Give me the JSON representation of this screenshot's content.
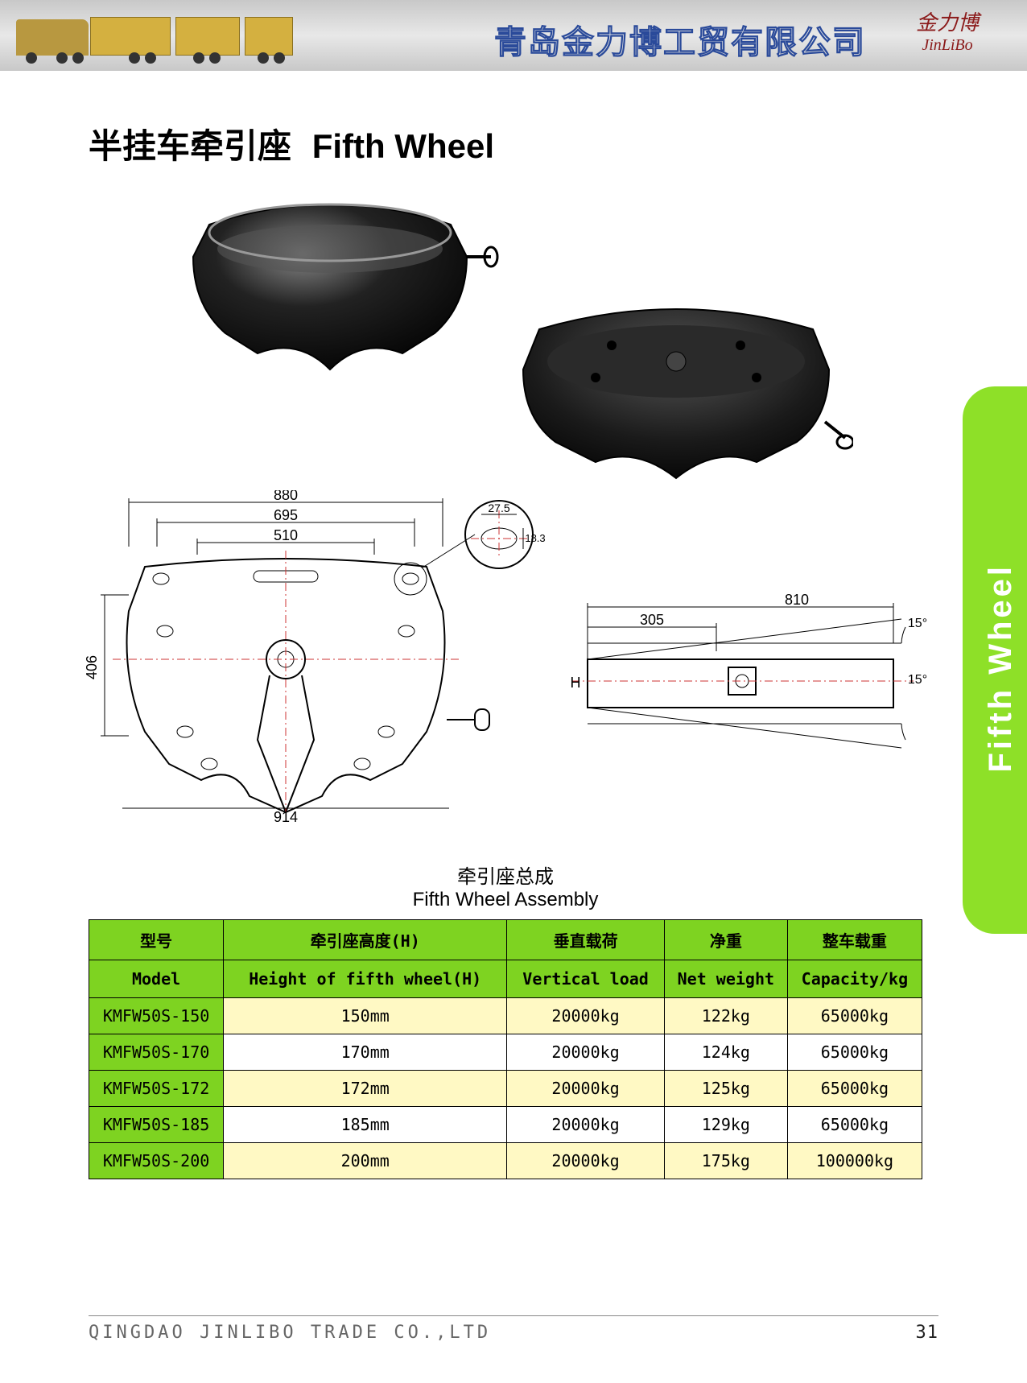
{
  "header": {
    "company_chinese": "青岛金力博工贸有限公司",
    "brand_chinese_script": "金力博",
    "brand_latin": "JinLiBo"
  },
  "page_title": {
    "chinese": "半挂车牵引座",
    "english": "Fifth Wheel"
  },
  "side_tab_text": "Fifth Wheel",
  "drawing_dimensions": {
    "top_880": "880",
    "top_695": "695",
    "top_510": "510",
    "detail_27_5": "27.5",
    "detail_18_3": "18.3",
    "left_406": "406",
    "bottom_914": "914",
    "side_810": "810",
    "side_305": "305",
    "angle_top": "15°",
    "angle_bot": "15°",
    "side_H": "H"
  },
  "table": {
    "title_cn": "牵引座总成",
    "title_en": "Fifth Wheel Assembly",
    "header_cn": [
      "型号",
      "牵引座高度(H)",
      "垂直载荷",
      "净重",
      "整车载重"
    ],
    "header_en": [
      "Model",
      "Height of fifth wheel(H)",
      "Vertical load",
      "Net weight",
      "Capacity/kg"
    ],
    "rows": [
      {
        "model": "KMFW50S-150",
        "height": "150mm",
        "vload": "20000kg",
        "net": "122kg",
        "cap": "65000kg",
        "alt": true
      },
      {
        "model": "KMFW50S-170",
        "height": "170mm",
        "vload": "20000kg",
        "net": "124kg",
        "cap": "65000kg",
        "alt": false
      },
      {
        "model": "KMFW50S-172",
        "height": "172mm",
        "vload": "20000kg",
        "net": "125kg",
        "cap": "65000kg",
        "alt": true
      },
      {
        "model": "KMFW50S-185",
        "height": "185mm",
        "vload": "20000kg",
        "net": "129kg",
        "cap": "65000kg",
        "alt": false
      },
      {
        "model": "KMFW50S-200",
        "height": "200mm",
        "vload": "20000kg",
        "net": "175kg",
        "cap": "100000kg",
        "alt": true
      }
    ],
    "colors": {
      "header_bg": "#7ed321",
      "alt_row_bg": "#fff9c4",
      "plain_row_bg": "#ffffff",
      "model_col_bg": "#7ed321",
      "border": "#000000"
    }
  },
  "footer": {
    "company_en": "QINGDAO JINLIBO TRADE CO.,LTD",
    "page_number": "31"
  },
  "colors": {
    "side_tab": "#8ee028",
    "company_text": "#2a4a9a",
    "brand_text": "#8b1a1a",
    "truck_body": "#d4b040"
  }
}
